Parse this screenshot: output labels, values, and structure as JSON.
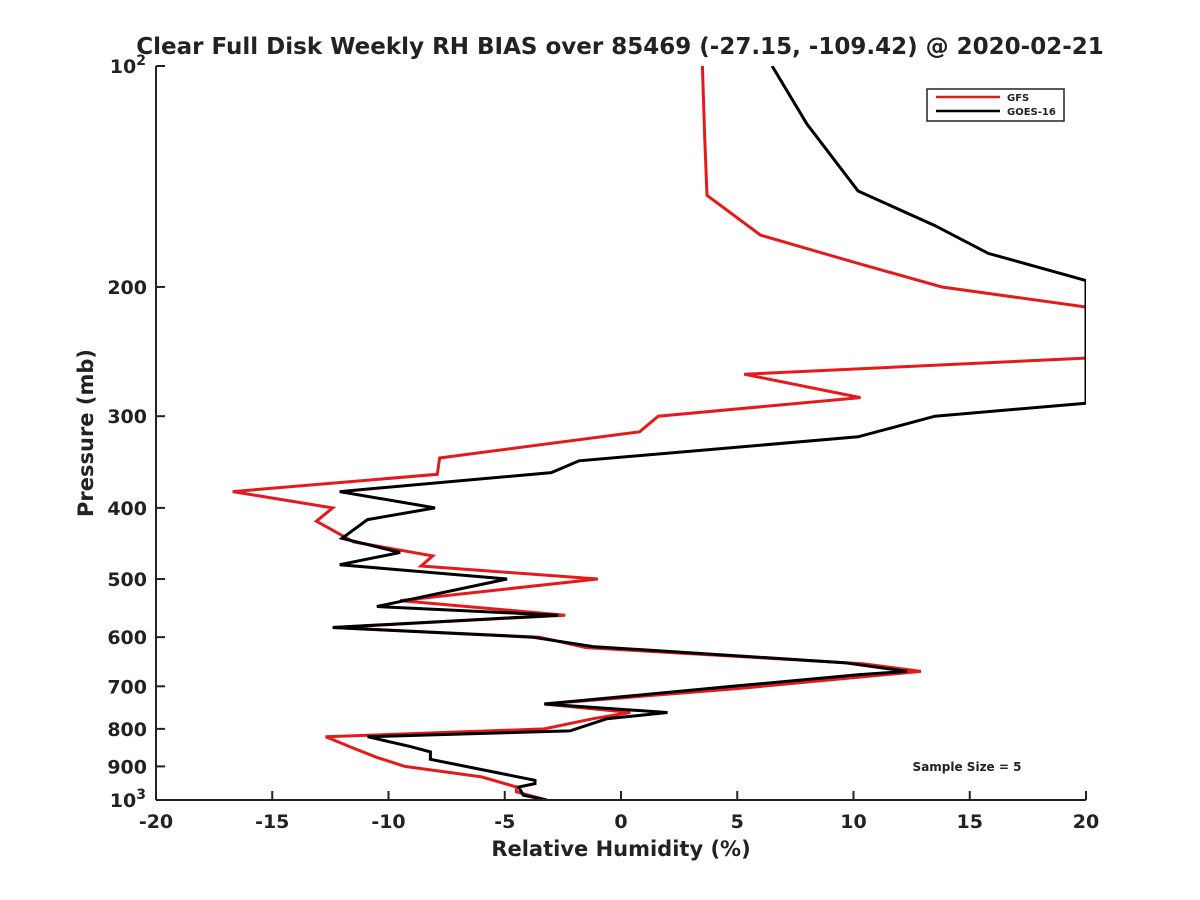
{
  "chart_data": {
    "type": "line",
    "title": "Clear Full Disk Weekly RH BIAS over 85469 (-27.15, -109.42) @ 2020-02-21",
    "xlabel": "Relative Humidity (%)",
    "ylabel": "Pressure (mb)",
    "xlim": [
      -20,
      20
    ],
    "ylim": [
      100,
      1000
    ],
    "y_scale": "log",
    "y_reversed": true,
    "grid": false,
    "legend_position": "top-right",
    "x_ticks": [
      "-20",
      "-15",
      "-10",
      "-5",
      "0",
      "5",
      "10",
      "15",
      "20"
    ],
    "y_ticks": [
      {
        "value": 100,
        "label": "10",
        "sup": "2"
      },
      {
        "value": 200,
        "label": "200",
        "sup": ""
      },
      {
        "value": 300,
        "label": "300",
        "sup": ""
      },
      {
        "value": 400,
        "label": "400",
        "sup": ""
      },
      {
        "value": 500,
        "label": "500",
        "sup": ""
      },
      {
        "value": 600,
        "label": "600",
        "sup": ""
      },
      {
        "value": 700,
        "label": "700",
        "sup": ""
      },
      {
        "value": 800,
        "label": "800",
        "sup": ""
      },
      {
        "value": 900,
        "label": "900",
        "sup": ""
      },
      {
        "value": 1000,
        "label": "10",
        "sup": "3"
      }
    ],
    "annotation": "Sample Size = 5",
    "series": [
      {
        "name": "GFS",
        "color": "#e41a1c",
        "points": [
          [
            3.5,
            100
          ],
          [
            3.6,
            125
          ],
          [
            3.7,
            150
          ],
          [
            6.0,
            170
          ],
          [
            10.0,
            185
          ],
          [
            13.8,
            200
          ],
          [
            20.0,
            213
          ],
          [
            20.0,
            250
          ],
          [
            5.3,
            263
          ],
          [
            10.3,
            283
          ],
          [
            1.6,
            300
          ],
          [
            0.8,
            315
          ],
          [
            -7.8,
            342
          ],
          [
            -7.9,
            360
          ],
          [
            -16.7,
            380
          ],
          [
            -12.4,
            400
          ],
          [
            -13.1,
            417
          ],
          [
            -11.5,
            445
          ],
          [
            -8.1,
            465
          ],
          [
            -8.6,
            480
          ],
          [
            -1.0,
            500
          ],
          [
            -9.5,
            535
          ],
          [
            -2.4,
            560
          ],
          [
            -12.4,
            582
          ],
          [
            -3.5,
            600
          ],
          [
            -1.5,
            620
          ],
          [
            10.4,
            652
          ],
          [
            12.9,
            668
          ],
          [
            5.0,
            705
          ],
          [
            -3.3,
            740
          ],
          [
            0.4,
            760
          ],
          [
            -1.2,
            775
          ],
          [
            -3.3,
            800
          ],
          [
            -12.7,
            820
          ],
          [
            -11.5,
            850
          ],
          [
            -10.5,
            875
          ],
          [
            -9.3,
            900
          ],
          [
            -6.0,
            930
          ],
          [
            -4.5,
            960
          ],
          [
            -4.5,
            975
          ],
          [
            -3.2,
            1000
          ]
        ]
      },
      {
        "name": "GOES-16",
        "color": "#000000",
        "points": [
          [
            6.5,
            100
          ],
          [
            8.0,
            120
          ],
          [
            10.2,
            148
          ],
          [
            13.5,
            165
          ],
          [
            15.8,
            180
          ],
          [
            20.0,
            196
          ],
          [
            20.0,
            288
          ],
          [
            13.5,
            300
          ],
          [
            10.2,
            320
          ],
          [
            -1.8,
            345
          ],
          [
            -3.0,
            358
          ],
          [
            -12.1,
            380
          ],
          [
            -8.0,
            400
          ],
          [
            -10.9,
            415
          ],
          [
            -12.0,
            440
          ],
          [
            -9.5,
            460
          ],
          [
            -12.1,
            478
          ],
          [
            -4.9,
            500
          ],
          [
            -10.5,
            545
          ],
          [
            -2.7,
            560
          ],
          [
            -12.4,
            582
          ],
          [
            -3.8,
            600
          ],
          [
            -1.2,
            618
          ],
          [
            9.6,
            650
          ],
          [
            12.3,
            668
          ],
          [
            10.2,
            675
          ],
          [
            4.8,
            700
          ],
          [
            -3.3,
            740
          ],
          [
            2.0,
            760
          ],
          [
            -0.6,
            775
          ],
          [
            -2.2,
            805
          ],
          [
            -10.9,
            820
          ],
          [
            -9.1,
            845
          ],
          [
            -8.2,
            860
          ],
          [
            -8.2,
            880
          ],
          [
            -3.7,
            940
          ],
          [
            -3.7,
            950
          ],
          [
            -4.4,
            960
          ],
          [
            -4.2,
            985
          ],
          [
            -3.2,
            1000
          ]
        ]
      }
    ]
  }
}
